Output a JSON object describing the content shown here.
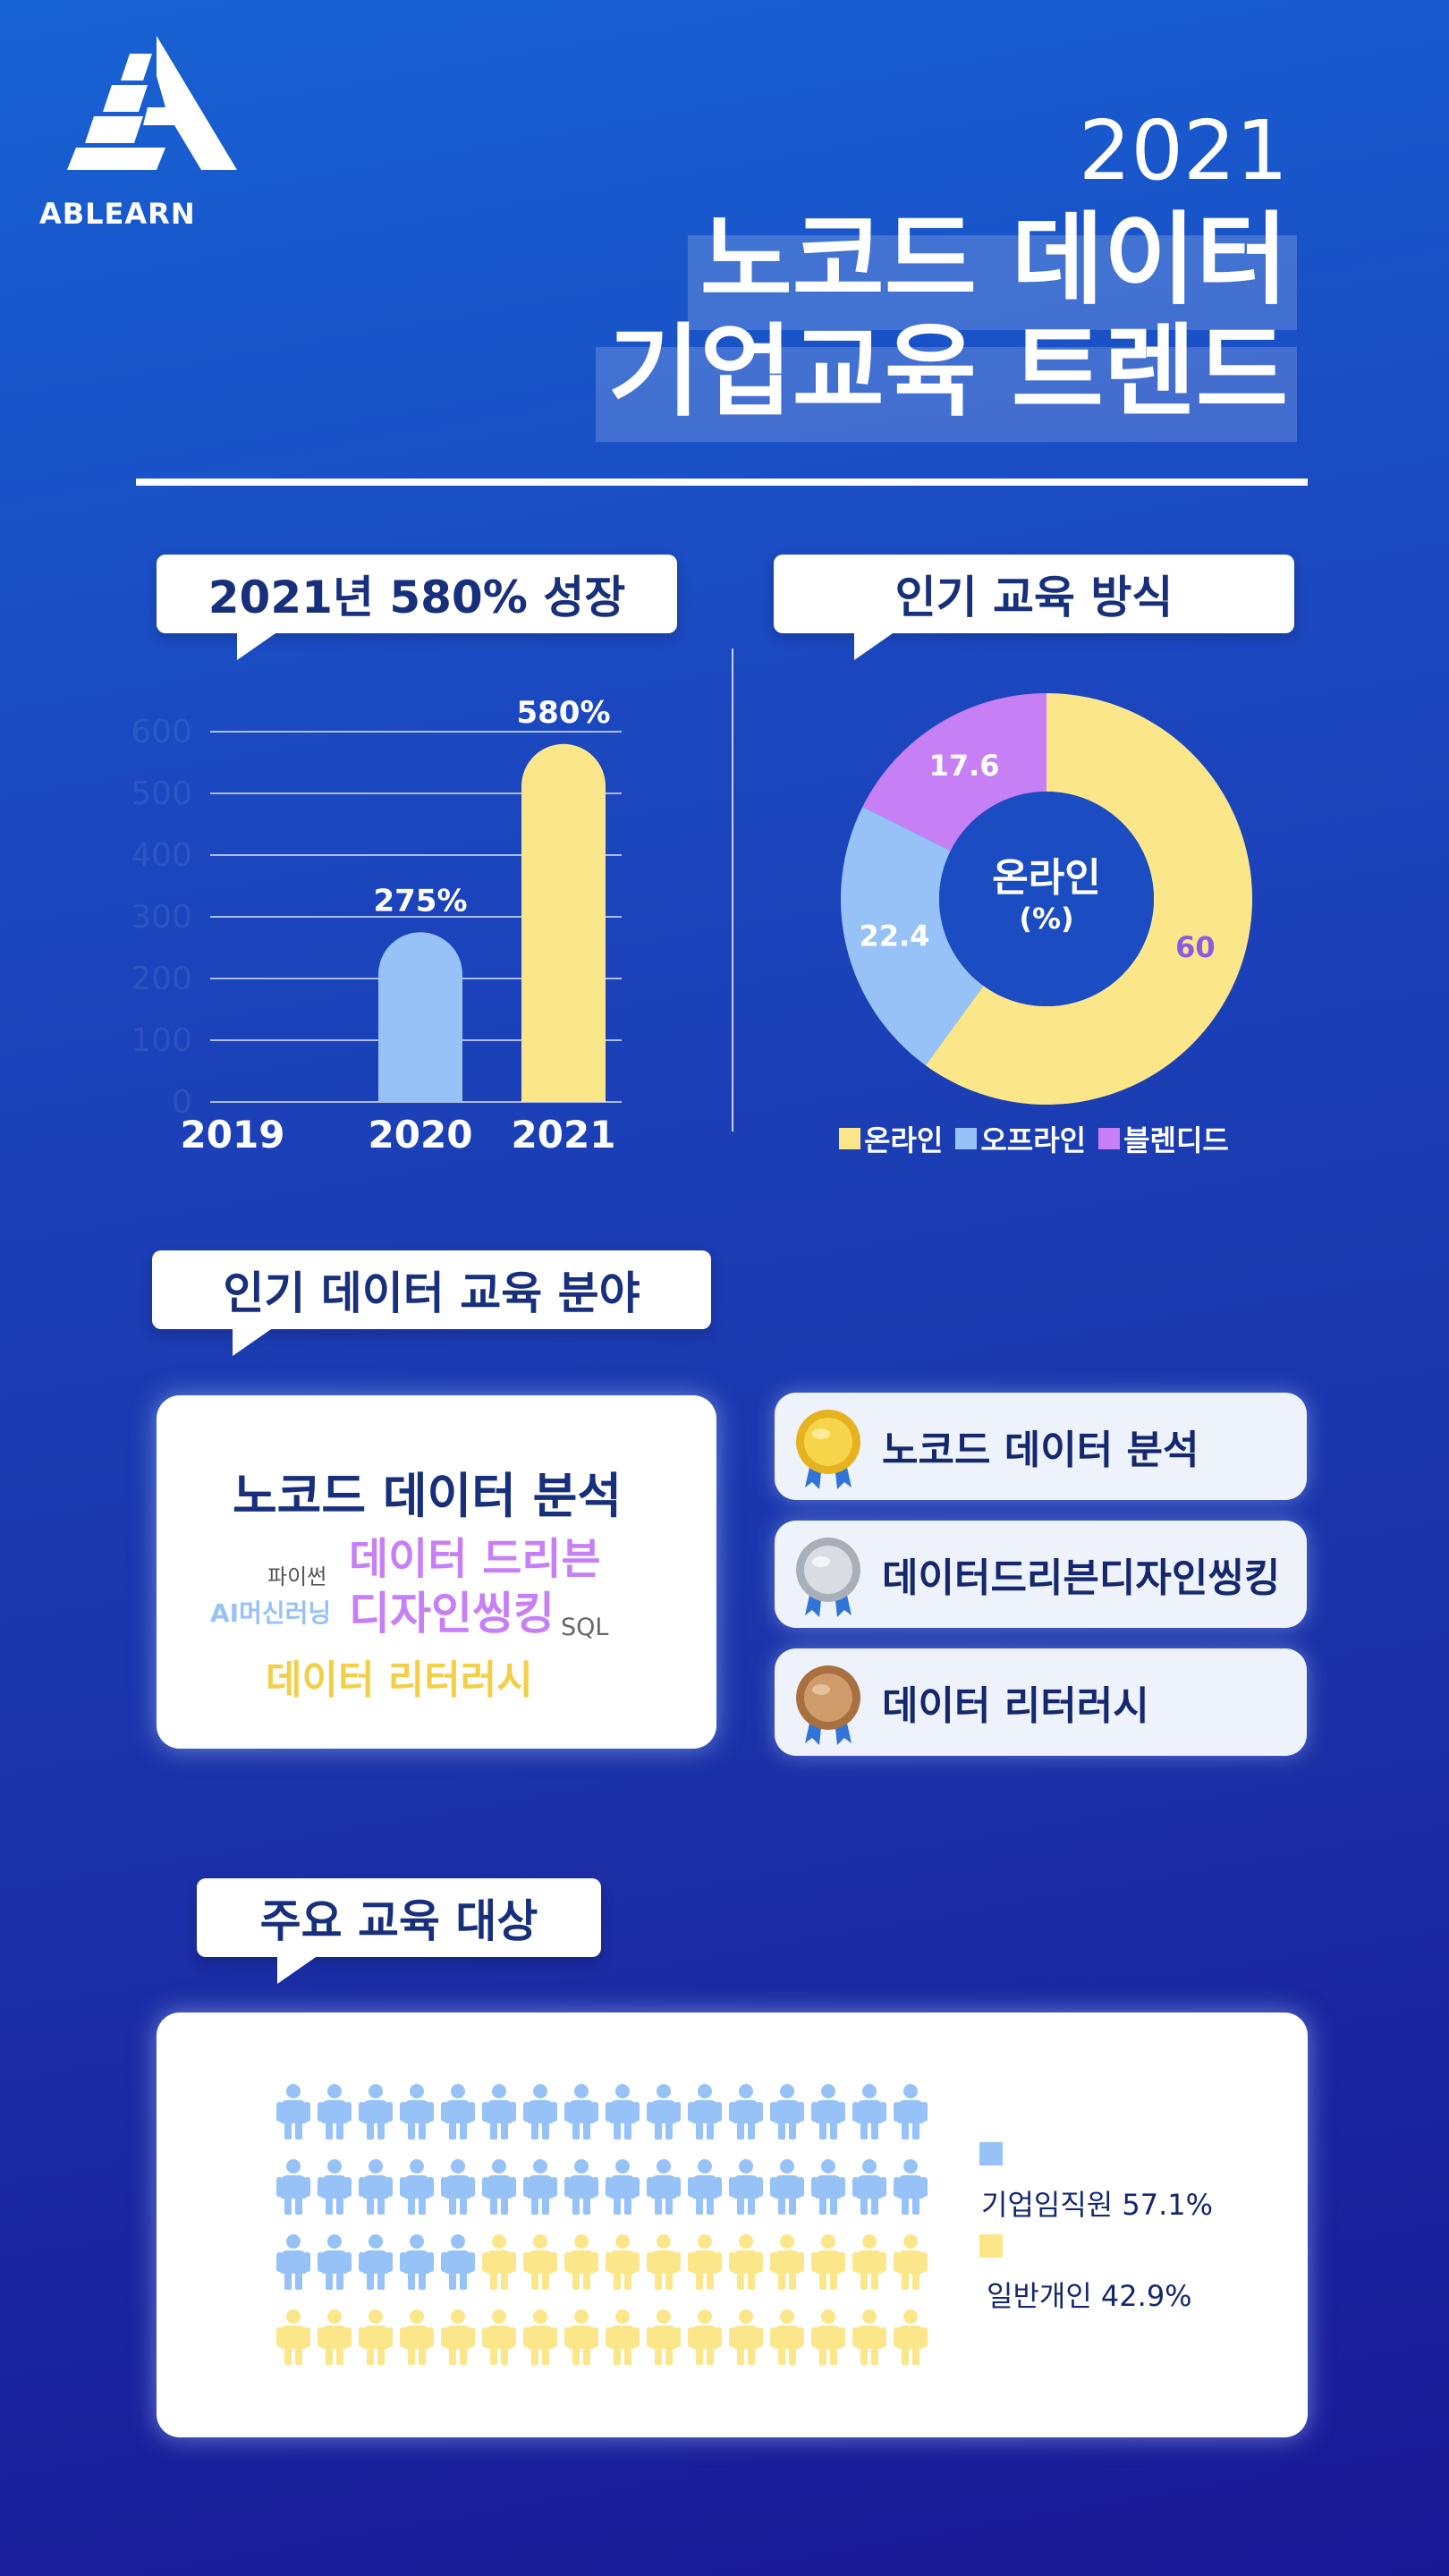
{
  "brand": {
    "logo_text": "ABLEARN"
  },
  "title": {
    "year": "2021",
    "line1": "노코드 데이터",
    "line2": "기업교육 트렌드"
  },
  "growth": {
    "heading": "2021년 580% 성장"
  },
  "methods": {
    "heading": "인기 교육 방식",
    "center_title": "온라인",
    "center_unit": "(%)"
  },
  "chart_data": [
    {
      "type": "bar",
      "categories": [
        "2019",
        "2020",
        "2021"
      ],
      "values": [
        0,
        275,
        580
      ],
      "data_labels": [
        "",
        "275%",
        "580%"
      ],
      "y_ticks": [
        "0",
        "100",
        "200",
        "300",
        "400",
        "500",
        "600"
      ],
      "ylim": [
        0,
        600
      ],
      "colors": [
        "#96c2f7",
        "#96c2f7",
        "#fbe68a"
      ],
      "grid": true
    },
    {
      "type": "pie",
      "categories": [
        "온라인",
        "오프라인",
        "블렌디드"
      ],
      "values": [
        60,
        22.4,
        17.6
      ],
      "value_labels": [
        "60",
        "22.4",
        "17.6"
      ],
      "colors": [
        "#fbe68a",
        "#96c2f7",
        "#c77ff6"
      ],
      "legend": "bottom"
    }
  ],
  "fields": {
    "heading": "인기 데이터 교육 분야",
    "cloud": {
      "w1": "노코드 데이터 분석",
      "w2": "파이썬",
      "w3": "데이터 드리븐",
      "w4": "AI머신러닝",
      "w5": "디자인씽킹",
      "w6": "SQL",
      "w7": "데이터 리터러시"
    },
    "ranks": [
      {
        "label": "노코드 데이터 분석",
        "medal": "gold-medal-icon"
      },
      {
        "label": "데이터드리븐디자인씽킹",
        "medal": "silver-medal-icon"
      },
      {
        "label": "데이터 리터러시",
        "medal": "bronze-medal-icon"
      }
    ]
  },
  "audience": {
    "heading": "주요 교육 대상",
    "total_icons": 64,
    "group1": {
      "label": "기업임직원 57.1%",
      "share": 0.571,
      "color": "#96c2f7"
    },
    "group2": {
      "label": "일반개인 42.9%",
      "share": 0.429,
      "color": "#fbe68a"
    }
  },
  "colors": {
    "navy": "#18307c",
    "purple": "#c77ff6",
    "yellow": "#f2cf47",
    "light_blue": "#96c2f7"
  }
}
